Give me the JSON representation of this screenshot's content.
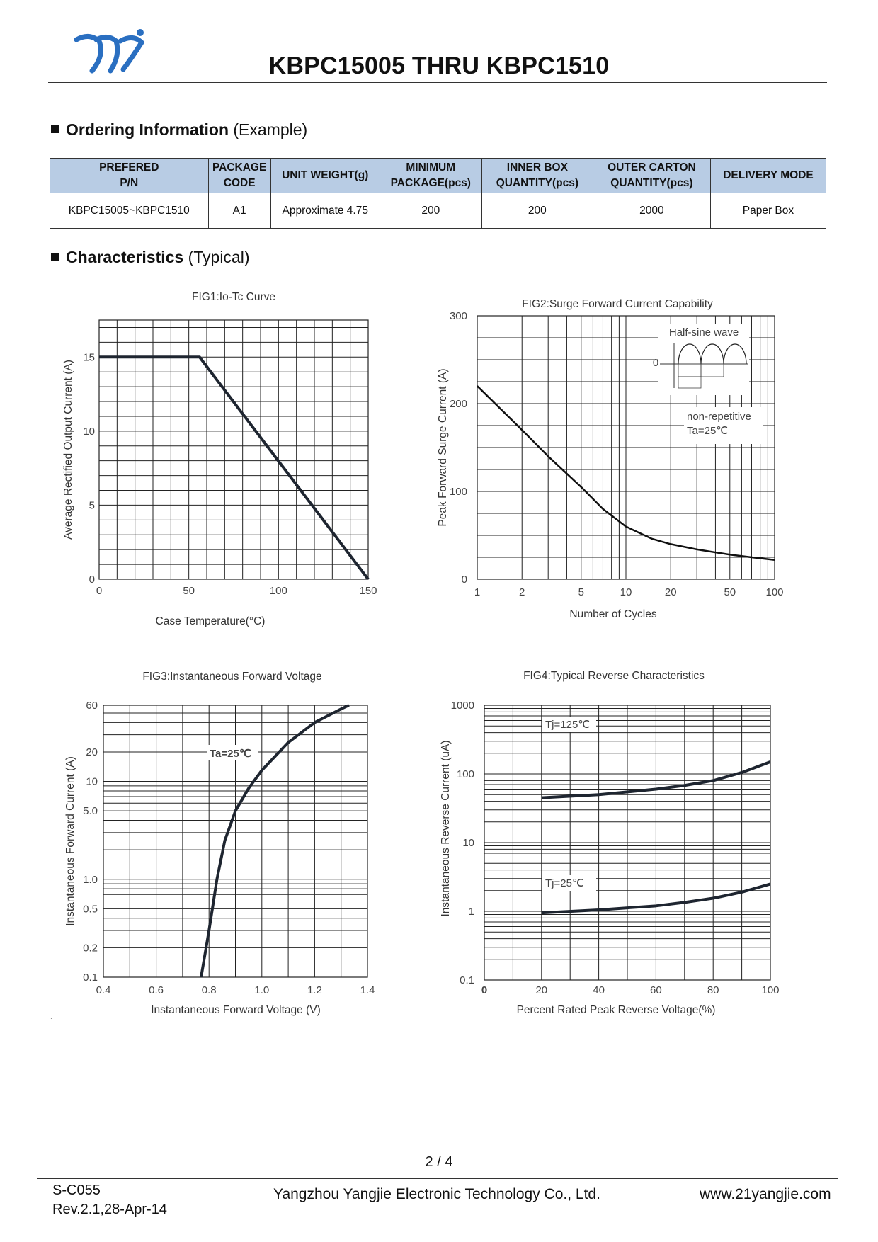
{
  "header": {
    "title": "KBPC15005 THRU KBPC1510",
    "logo": "yj-logo",
    "logo_color": "#2a6fc1"
  },
  "ordering": {
    "heading_bold": "Ordering Information",
    "heading_suffix": " (Example)",
    "columns": [
      [
        "PREFERED",
        "P/N"
      ],
      [
        "PACKAGE",
        "CODE"
      ],
      [
        "UNIT WEIGHT(g)"
      ],
      [
        "MINIMUM",
        "PACKAGE(pcs)"
      ],
      [
        "INNER BOX",
        "QUANTITY(pcs)"
      ],
      [
        "OUTER CARTON",
        "QUANTITY(pcs)"
      ],
      [
        "DELIVERY MODE"
      ]
    ],
    "row": [
      "KBPC15005~KBPC1510",
      "A1",
      "Approximate 4.75",
      "200",
      "200",
      "2000",
      "Paper Box"
    ],
    "header_bg": "#b8cce4"
  },
  "characteristics": {
    "heading_bold": "Characteristics",
    "heading_suffix": " (Typical)"
  },
  "chart_data": [
    {
      "type": "line",
      "title": "FIG1:Io-Tc Curve",
      "xlabel": "Case Temperature(°C)",
      "ylabel": "Average Rectified Output Current (A)",
      "xlim": [
        0,
        150
      ],
      "ylim": [
        0,
        17.5
      ],
      "xticks": [
        0,
        50,
        100,
        150
      ],
      "yticks": [
        0,
        5,
        10,
        15
      ],
      "x": [
        0,
        56,
        150
      ],
      "y": [
        15,
        15,
        0
      ]
    },
    {
      "type": "line",
      "title": "FIG2:Surge Forward Current Capability",
      "xlabel": "Number of Cycles",
      "ylabel": "Peak Forward Surge Current (A)",
      "xscale": "log",
      "xlim": [
        1,
        100
      ],
      "ylim": [
        0,
        300
      ],
      "xticks": [
        1,
        2,
        5,
        10,
        20,
        50,
        100
      ],
      "yticks": [
        0,
        100,
        200,
        300
      ],
      "x": [
        1,
        2,
        3,
        5,
        7,
        10,
        15,
        20,
        30,
        50,
        70,
        100
      ],
      "y": [
        220,
        170,
        140,
        105,
        80,
        60,
        46,
        40,
        34,
        28,
        25,
        22
      ],
      "annotations": [
        "Half-sine wave",
        "0",
        "non-repetitive",
        "Ta=25℃"
      ]
    },
    {
      "type": "line",
      "title": "FIG3:Instantaneous Forward Voltage",
      "xlabel": "Instantaneous Forward Voltage (V)",
      "ylabel": "Instantaneous Forward Current (A)",
      "yscale": "log",
      "xlim": [
        0.4,
        1.4
      ],
      "ylim": [
        0.1,
        60
      ],
      "xticks": [
        "0.4",
        "0.6",
        "0.8",
        "1.0",
        "1.2",
        "1.4"
      ],
      "yticks": [
        "0.1",
        "0.2",
        "0.5",
        "1.0",
        "5.0",
        "10",
        "20",
        "60"
      ],
      "x": [
        0.77,
        0.8,
        0.83,
        0.86,
        0.9,
        0.95,
        1.0,
        1.05,
        1.1,
        1.2,
        1.3,
        1.33
      ],
      "y": [
        0.1,
        0.3,
        1.0,
        2.5,
        5.0,
        8.5,
        13,
        18,
        25,
        40,
        55,
        60
      ],
      "annotations": [
        "Ta=25℃"
      ]
    },
    {
      "type": "line",
      "title": "FIG4:Typical Reverse Characteristics",
      "xlabel": "Percent Rated Peak Reverse Voltage(%)",
      "ylabel": "Instantaneous Reverse Current (uA)",
      "yscale": "log",
      "xlim": [
        0,
        100
      ],
      "ylim": [
        0.1,
        1000
      ],
      "xticks": [
        "0",
        "20",
        "40",
        "60",
        "80",
        "100"
      ],
      "yticks": [
        "0.1",
        "1",
        "10",
        "100",
        "1000"
      ],
      "series": [
        {
          "name": "Tj=125℃",
          "x": [
            20,
            40,
            60,
            70,
            80,
            90,
            100
          ],
          "y": [
            45,
            50,
            60,
            68,
            80,
            105,
            150
          ]
        },
        {
          "name": "Tj=25℃",
          "x": [
            20,
            40,
            60,
            70,
            80,
            90,
            100
          ],
          "y": [
            0.95,
            1.05,
            1.2,
            1.35,
            1.55,
            1.9,
            2.5
          ]
        }
      ]
    }
  ],
  "footer": {
    "page": "2 / 4",
    "doc_code": "S-C055",
    "revision": "Rev.2.1,28-Apr-14",
    "company": "Yangzhou Yangjie Electronic Technology Co., Ltd.",
    "website": "www.21yangjie.com",
    "stray_mark": "`"
  }
}
